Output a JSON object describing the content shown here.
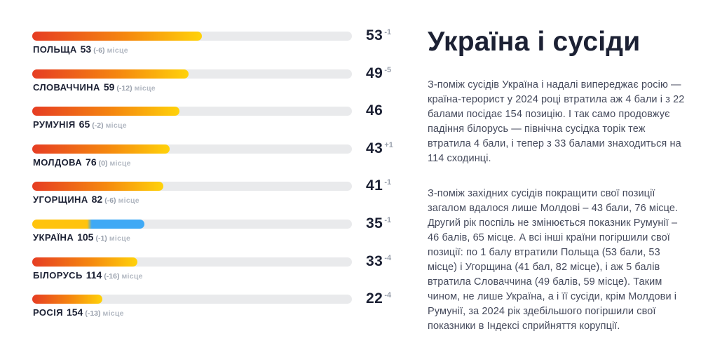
{
  "colors": {
    "ink": "#1c2134",
    "body": "#454a5c",
    "muted": "#9aa1ad",
    "muted-light": "#b2b8c2",
    "track": "#e9eaec",
    "grad-start": "#e63d23",
    "grad-mid": "#f5870f",
    "grad-end": "#ffd20a",
    "ua-yellow": "#ffc30d",
    "ua-blue": "#3fa9f5",
    "bg": "#ffffff"
  },
  "chart_data": {
    "type": "bar",
    "orientation": "horizontal",
    "xlim": [
      0,
      100
    ],
    "grid": false,
    "legend": false,
    "rows": [
      {
        "country": "ПОЛЬЩА",
        "score": 53,
        "score_change": "-1",
        "rank": "53",
        "rank_change": "(-6)",
        "place_label": "місце",
        "variant": "gradient"
      },
      {
        "country": "СЛОВАЧЧИНА",
        "score": 49,
        "score_change": "-5",
        "rank": "59",
        "rank_change": "(-12)",
        "place_label": "місце",
        "variant": "gradient"
      },
      {
        "country": "РУМУНІЯ",
        "score": 46,
        "score_change": "",
        "rank": "65",
        "rank_change": "(-2)",
        "place_label": "місце",
        "variant": "gradient"
      },
      {
        "country": "МОЛДОВА",
        "score": 43,
        "score_change": "+1",
        "rank": "76",
        "rank_change": "(0)",
        "place_label": "місце",
        "variant": "gradient"
      },
      {
        "country": "УГОРЩИНА",
        "score": 41,
        "score_change": "-1",
        "rank": "82",
        "rank_change": "(-6)",
        "place_label": "місце",
        "variant": "gradient"
      },
      {
        "country": "УКРАЇНА",
        "score": 35,
        "score_change": "-1",
        "rank": "105",
        "rank_change": "(-1)",
        "place_label": "місце",
        "variant": "ukraine"
      },
      {
        "country": "БІЛОРУСЬ",
        "score": 33,
        "score_change": "-4",
        "rank": "114",
        "rank_change": "(-16)",
        "place_label": "місце",
        "variant": "gradient"
      },
      {
        "country": "РОСІЯ",
        "score": 22,
        "score_change": "-4",
        "rank": "154",
        "rank_change": "(-13)",
        "place_label": "місце",
        "variant": "gradient"
      }
    ]
  },
  "article": {
    "title": "Україна і сусіди",
    "paragraphs": [
      "З-поміж сусідів Україна і надалі випереджає росію — країна-терорист у 2024 році втратила аж 4 бали і з 22 балами посідає 154 позицію. І так само продовжує падіння  білорусь — північна сусідка торік теж втратила 4 бали, і тепер з 33 балами знаходиться на 114 сходинці.",
      "З-поміж західних сусідів покращити свої позиції загалом вдалося лише Молдові – 43 бали, 76 місце. Другий рік поспіль не змінюється показник Румунії – 46 балів, 65 місце. А всі інші країни погіршили свої позиції: по 1 балу втратили Польща (53 бали, 53 місце) і Угорщина (41 бал, 82 місце), і аж 5 балів втратила Словаччина (49 балів, 59 місце). Таким чином, не лише Україна, а і її сусіди, крім Молдови і Румунії, за 2024 рік здебільшого погіршили свої показники в Індексі сприйняття корупції."
    ]
  }
}
